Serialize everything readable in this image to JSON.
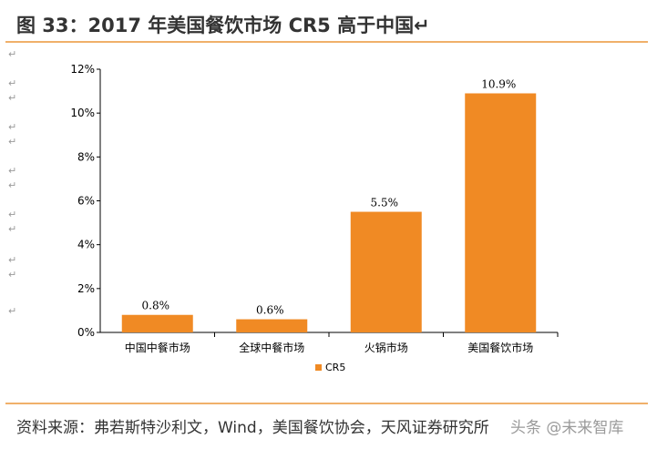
{
  "figure": {
    "title": "图 33：2017 年美国餐饮市场 CR5 高于中国↵",
    "source": "资料来源：弗若斯特沙利文，Wind，美国餐饮协会，天风证券研究所",
    "watermark": "头条 @未来智库"
  },
  "colors": {
    "bar": "#f08a24",
    "rule": "#f0b06a",
    "axis": "#000000",
    "text": "#333333"
  },
  "chart_data": {
    "type": "bar",
    "categories": [
      "中国中餐市场",
      "全球中餐市场",
      "火锅市场",
      "美国餐饮市场"
    ],
    "series": [
      {
        "name": "CR5",
        "values": [
          0.8,
          0.6,
          5.5,
          10.9
        ]
      }
    ],
    "data_labels": [
      "0.8%",
      "0.6%",
      "5.5%",
      "10.9%"
    ],
    "y_ticks": [
      0,
      2,
      4,
      6,
      8,
      10,
      12
    ],
    "y_tick_labels": [
      "0%",
      "2%",
      "4%",
      "6%",
      "8%",
      "10%",
      "12%"
    ],
    "ylim": [
      0,
      12
    ],
    "legend": "bottom",
    "grid": false
  }
}
